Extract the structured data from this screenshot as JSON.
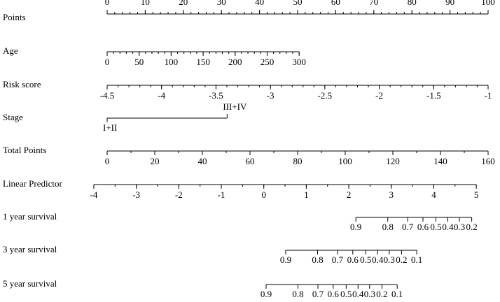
{
  "chart_data": {
    "type": "nomogram",
    "rows": [
      {
        "label": "Points",
        "ticks": [
          0,
          10,
          20,
          30,
          40,
          50,
          60,
          70,
          80,
          90,
          100
        ],
        "lim": [
          0,
          100
        ],
        "at_points": [
          0,
          100
        ],
        "minor_step": 2,
        "tick_side": "above"
      },
      {
        "label": "Age",
        "ticks": [
          0,
          50,
          100,
          150,
          200,
          250,
          300
        ],
        "lim": [
          0,
          300
        ],
        "at_points": [
          0,
          50.4
        ],
        "minor_step": 10
      },
      {
        "label": "Risk score",
        "ticks": [
          -4.5,
          -4,
          -3.5,
          -3,
          -2.5,
          -2,
          -1.5,
          -1
        ],
        "lim": [
          -4.5,
          -1
        ],
        "at_points": [
          0,
          100
        ],
        "minor_step": 0.1
      },
      {
        "label": "Stage",
        "categories": [
          "I+II",
          "III+IV"
        ],
        "category_points": [
          0,
          31.5
        ]
      },
      {
        "label": "Total Points",
        "ticks": [
          0,
          20,
          40,
          60,
          80,
          100,
          120,
          140,
          160
        ],
        "lim": [
          0,
          160
        ],
        "at_points": [
          0,
          100
        ],
        "minor_step": 10
      },
      {
        "label": "Linear Predictor",
        "ticks": [
          -4,
          -3,
          -2,
          -1,
          0,
          1,
          2,
          3,
          4,
          5
        ],
        "lim": [
          -4,
          5
        ],
        "at_points": [
          -3.5,
          96.9
        ],
        "minor_step": 0.5
      },
      {
        "label": "1 year survival",
        "ticks": [
          0.9,
          0.8,
          0.7,
          0.6,
          0.5,
          0.4,
          0.3,
          0.2
        ],
        "baseline_survival": 0.988
      },
      {
        "label": "3 year survival",
        "ticks": [
          0.9,
          0.8,
          0.7,
          0.6,
          0.5,
          0.4,
          0.3,
          0.2,
          0.1
        ],
        "baseline_survival": 0.939
      },
      {
        "label": "5 year survival",
        "ticks": [
          0.9,
          0.8,
          0.7,
          0.6,
          0.5,
          0.4,
          0.3,
          0.2,
          0.1
        ],
        "baseline_survival": 0.905
      }
    ]
  }
}
